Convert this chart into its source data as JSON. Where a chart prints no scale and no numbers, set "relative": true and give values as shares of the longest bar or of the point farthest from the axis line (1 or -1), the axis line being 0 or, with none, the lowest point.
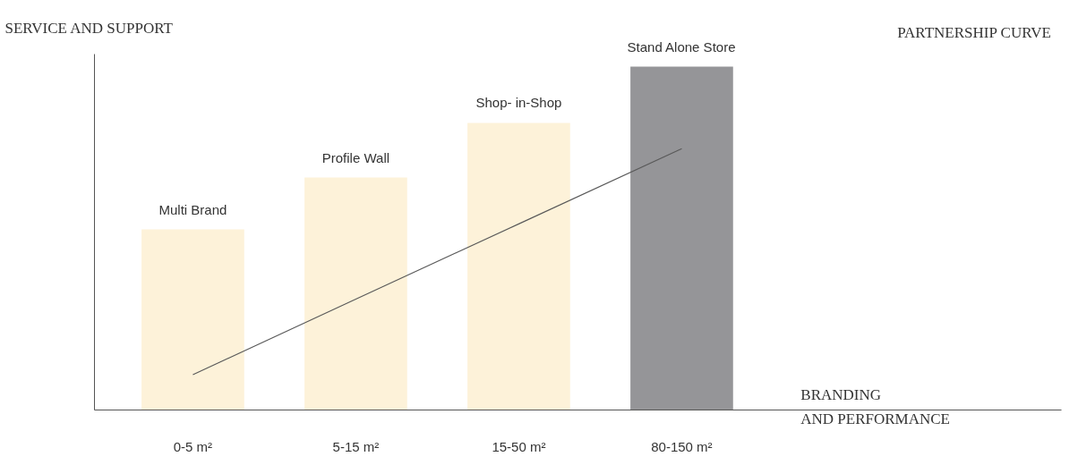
{
  "chart_data": {
    "type": "bar",
    "relative": true,
    "categories": [
      "0-5 m²",
      "5-15 m²",
      "15-50 m²",
      "80-150 m²"
    ],
    "ylabel": "SERVICE AND SUPPORT",
    "xlabel": "BRANDING\nAND PERFORMANCE",
    "series": [
      {
        "colors": [
          "#fdf2d9",
          "#fdf2d9",
          "#fdf2d9",
          "#959598"
        ],
        "values": [
          0.526,
          0.677,
          0.836,
          1.0
        ]
      },
      {
        "type": "line",
        "name": "PARTNERSHIP CURVE",
        "color": "#5a5a5a",
        "values": [
          0.103,
          0.323,
          0.542,
          0.761
        ]
      }
    ],
    "annotations": [
      {
        "text": "Multi Brand",
        "x": "0-5 m²",
        "y": 0.526
      },
      {
        "text": "Profile Wall",
        "x": "5-15 m²",
        "y": 0.677
      },
      {
        "text": "Shop- in-Shop",
        "x": "15-50 m²",
        "y": 0.836
      },
      {
        "text": "Stand Alone Store",
        "x": "80-150 m²",
        "y": 1.0
      }
    ],
    "legend": false,
    "grid": false
  }
}
